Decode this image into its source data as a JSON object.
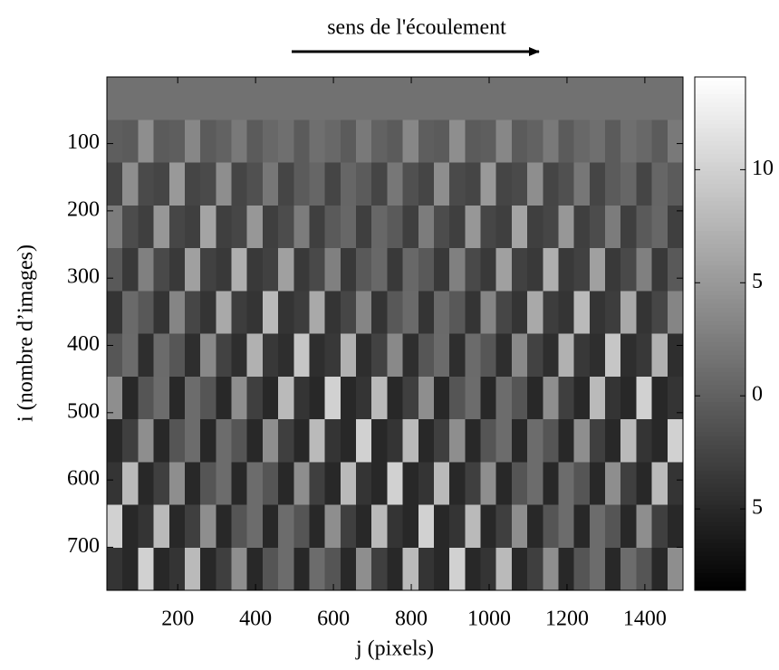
{
  "chart_data": {
    "type": "heatmap",
    "title": "sens de l'écoulement",
    "xlabel": "j (pixels)",
    "ylabel": "i (nombre d’images)",
    "colormap": "gray",
    "xlim": [
      18,
      1498
    ],
    "ylim": [
      764,
      1
    ],
    "xticks": [
      200,
      400,
      600,
      800,
      1000,
      1200,
      1400
    ],
    "yticks": [
      100,
      200,
      300,
      400,
      500,
      600,
      700
    ],
    "clim": [
      -8.6,
      14.1
    ],
    "cticks": [
      10,
      5,
      0,
      {
        "value": -5,
        "label": "5"
      }
    ],
    "values": [
      [
        1.5,
        1.5,
        1.5,
        1.5,
        1.5,
        1.5,
        1.5,
        1.5,
        1.5,
        1.5,
        1.5,
        1.5,
        1.5,
        1.5,
        1.5,
        1.5,
        1.5,
        1.5,
        1.5,
        1.5,
        1.5,
        1.5,
        1.5,
        1.5,
        1.5,
        1.5,
        1.5,
        1.5,
        1.5,
        1.5,
        1.5,
        1.5,
        1.5,
        1.5,
        1.5,
        1.5,
        1.5
      ],
      [
        -0.2,
        -0.5,
        4,
        -0.5,
        -0.2,
        3.4,
        -0.5,
        0.1,
        2.2,
        -0.5,
        0.7,
        1.3,
        -0.5,
        1.3,
        0.7,
        -0.5,
        2.2,
        0.1,
        -0.5,
        3.4,
        -0.2,
        -0.5,
        4,
        -0.5,
        -0.2,
        3.4,
        -0.5,
        0.1,
        2.2,
        -0.5,
        0.7,
        1.3,
        -0.5,
        1.3,
        0.7,
        -0.5,
        2.2
      ],
      [
        -2.5,
        4,
        -2,
        -2.5,
        5,
        -2.5,
        -2,
        4,
        -2.5,
        -1.5,
        2,
        -2.5,
        -0.5,
        0.5,
        -2.5,
        0.5,
        -0.5,
        -2.5,
        2,
        -1.5,
        -2.5,
        4,
        -2,
        -2.5,
        5,
        -2.5,
        -2,
        4,
        -2.5,
        -1.5,
        2,
        -2.5,
        -0.5,
        0.5,
        -2.5,
        0.5,
        -0.5
      ],
      [
        2.4,
        -1.8,
        -3,
        4.8,
        -2.4,
        -3,
        6,
        -3,
        -2.4,
        4.8,
        -3,
        -1.8,
        2.4,
        -3,
        -0.6,
        0.6,
        -3,
        0.6,
        -0.6,
        -3,
        2.4,
        -1.8,
        -3,
        4.8,
        -2.4,
        -3,
        6,
        -3,
        -2.4,
        4.8,
        -3,
        -1.8,
        2.4,
        -3,
        -0.6,
        0.6,
        -3
      ],
      [
        -0.7,
        -3.5,
        2.8,
        -2.1,
        -3.5,
        5.6,
        -2.8,
        -3.5,
        7,
        -3.5,
        -2.8,
        5.6,
        -3.5,
        -2.1,
        2.8,
        -3.5,
        -0.7,
        0.7,
        -3.5,
        0.7,
        -0.7,
        -3.5,
        2.8,
        -2.1,
        -3.5,
        5.6,
        -2.8,
        -3.5,
        7,
        -3.5,
        -2.8,
        5.6,
        -3.5,
        -2.1,
        2.8,
        -3.5,
        -0.7
      ],
      [
        -4,
        0.8,
        -0.8,
        -4,
        3.2,
        -2.4,
        -4,
        6.4,
        -3.2,
        -4,
        8,
        -4,
        -3.2,
        6.4,
        -4,
        -2.4,
        3.2,
        -4,
        -0.8,
        0.8,
        -4,
        0.8,
        -0.8,
        -4,
        3.2,
        -2.4,
        -4,
        6.4,
        -3.2,
        -4,
        8,
        -4,
        -3.2,
        6.4,
        -4,
        -2.4,
        3.2
      ],
      [
        -0.9,
        0.9,
        -4.5,
        0.9,
        -0.9,
        -4.5,
        3.6,
        -2.7,
        -4.5,
        7.2,
        -3.6,
        -4.5,
        9,
        -4.5,
        -3.6,
        7.2,
        -4.5,
        -2.7,
        3.6,
        -4.5,
        -0.9,
        0.9,
        -4.5,
        0.9,
        -0.9,
        -4.5,
        3.6,
        -2.7,
        -4.5,
        7.2,
        -3.6,
        -4.5,
        9,
        -4.5,
        -3.6,
        7.2,
        -4.5
      ],
      [
        4,
        -5,
        -1,
        1,
        -5,
        1,
        -1,
        -5,
        4,
        -3,
        -5,
        8,
        -4,
        -5,
        10,
        -5,
        -4,
        8,
        -5,
        -3,
        4,
        -5,
        -1,
        1,
        -5,
        1,
        -1,
        -5,
        4,
        -3,
        -5,
        8,
        -4,
        -5,
        10,
        -5,
        -4
      ],
      [
        -5,
        -3,
        4,
        -5,
        -1,
        1,
        -5,
        1,
        -1,
        -5,
        4,
        -3,
        -5,
        8,
        -4,
        -5,
        10,
        -5,
        -4,
        8,
        -5,
        -3,
        4,
        -5,
        -1,
        1,
        -5,
        1,
        -1,
        -5,
        4,
        -3,
        -5,
        8,
        -4,
        -5,
        10
      ],
      [
        -4,
        8,
        -5,
        -3,
        4,
        -5,
        -1,
        1,
        -5,
        1,
        -1,
        -5,
        4,
        -3,
        -5,
        8,
        -4,
        -5,
        10,
        -5,
        -4,
        8,
        -5,
        -3,
        4,
        -5,
        -1,
        1,
        -5,
        1,
        -1,
        -5,
        4,
        -3,
        -5,
        8,
        -4
      ],
      [
        10,
        -5,
        -4,
        8,
        -5,
        -3,
        4,
        -5,
        -1,
        1,
        -5,
        1,
        -1,
        -5,
        4,
        -3,
        -5,
        8,
        -4,
        -5,
        10,
        -5,
        -4,
        8,
        -5,
        -3,
        4,
        -5,
        -1,
        1,
        -5,
        1,
        -1,
        -5,
        4,
        -3,
        -5
      ],
      [
        -4,
        -5,
        10,
        -5,
        -4,
        8,
        -5,
        -3,
        4,
        -5,
        -1,
        1,
        -5,
        1,
        -1,
        -5,
        4,
        -3,
        -5,
        8,
        -4,
        -5,
        10,
        -5,
        -4,
        8,
        -5,
        -3,
        4,
        -5,
        -1,
        1,
        -5,
        1,
        -1,
        -5,
        4
      ]
    ]
  }
}
